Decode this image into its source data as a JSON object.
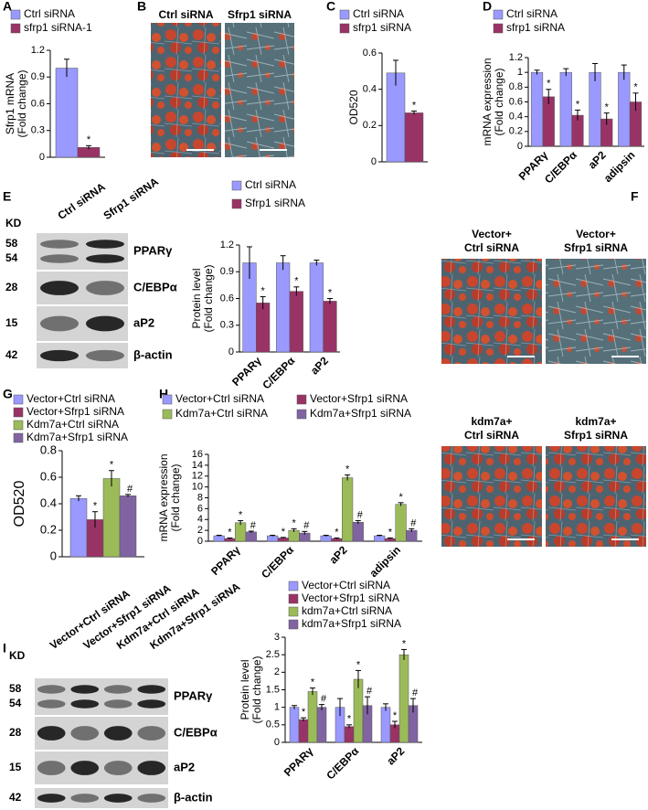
{
  "panels": [
    "A",
    "B",
    "C",
    "D",
    "E",
    "F",
    "G",
    "H",
    "I"
  ],
  "images": {
    "B": [
      [
        "Ctrl siRNA"
      ],
      [
        "Sfrp1 siRNA"
      ]
    ],
    "F": [
      [
        "Vector+",
        "Ctrl siRNA"
      ],
      [
        "Vector+",
        "Sfrp1 siRNA"
      ],
      [
        "kdm7a+",
        "Ctrl siRNA"
      ],
      [
        "kdm7a+",
        "Sfrp1 siRNA"
      ]
    ]
  },
  "blots": {
    "E": {
      "kd_title": "KD",
      "lanes": [
        "Ctrl siRNA",
        "Sfrp1 siRNA"
      ],
      "rows": [
        {
          "kd": [
            "58",
            "54"
          ],
          "name": "PPARγ"
        },
        {
          "kd": [
            "28"
          ],
          "name": "C/EBPα"
        },
        {
          "kd": [
            "15"
          ],
          "name": "aP2"
        },
        {
          "kd": [
            "42"
          ],
          "name": "β-actin"
        }
      ]
    },
    "I": {
      "kd_title": "KD",
      "lanes": [
        "Vector+Ctrl siRNA",
        "Vector+Sfrp1 siRNA",
        "Kdm7a+Ctrl siRNA",
        "Kdm7a+Sfrp1 siRNA"
      ],
      "rows": [
        {
          "kd": [
            "58",
            "54"
          ],
          "name": "PPARγ"
        },
        {
          "kd": [
            "28"
          ],
          "name": "C/EBPα"
        },
        {
          "kd": [
            "15"
          ],
          "name": "aP2"
        },
        {
          "kd": [
            "42"
          ],
          "name": "β-actin"
        }
      ]
    }
  },
  "chart_data": [
    {
      "type": "bar",
      "ylabel": [
        "Sfrp1 mRNA",
        "(Fold change)"
      ],
      "categories": [
        null
      ],
      "ylim": [
        0,
        1.2
      ],
      "yticks": [
        0,
        0.3,
        0.6,
        0.9,
        1.2
      ],
      "series": [
        {
          "name": "Ctrl siRNA",
          "color": "#9999ff",
          "values": [
            1.0
          ],
          "errors": [
            0.1
          ],
          "marks": [
            null
          ]
        },
        {
          "name": "sfrp1 siRNA-1",
          "color": "#993366",
          "values": [
            0.11
          ],
          "errors": [
            0.02
          ],
          "marks": [
            "*"
          ]
        }
      ]
    },
    {
      "type": "bar",
      "ylabel": [
        "OD520"
      ],
      "categories": [
        null
      ],
      "ylim": [
        0,
        0.6
      ],
      "yticks": [
        0,
        0.2,
        0.4,
        0.6
      ],
      "series": [
        {
          "name": "Ctrl siRNA",
          "color": "#9999ff",
          "values": [
            0.49
          ],
          "errors": [
            0.07
          ],
          "marks": [
            null
          ]
        },
        {
          "name": "sfrp1 siRNA",
          "color": "#993366",
          "values": [
            0.27
          ],
          "errors": [
            0.01
          ],
          "marks": [
            "*"
          ]
        }
      ]
    },
    {
      "type": "bar",
      "ylabel": [
        "mRNA expression",
        "(Fold change)"
      ],
      "categories": [
        "PPARγ",
        "C/EBPα",
        "aP2",
        "adipsin"
      ],
      "ylim": [
        0,
        1.2
      ],
      "yticks": [
        0,
        0.2,
        0.4,
        0.6,
        0.8,
        1,
        1.2
      ],
      "series": [
        {
          "name": "Ctrl siRNA",
          "color": "#9999ff",
          "values": [
            1,
            1,
            1,
            1
          ],
          "errors": [
            0.03,
            0.05,
            0.12,
            0.1
          ],
          "marks": [
            null,
            null,
            null,
            null
          ]
        },
        {
          "name": "sfrp1 siRNA",
          "color": "#993366",
          "values": [
            0.67,
            0.42,
            0.37,
            0.6
          ],
          "errors": [
            0.1,
            0.07,
            0.08,
            0.12
          ],
          "marks": [
            "*",
            "*",
            "*",
            "*"
          ]
        }
      ]
    },
    {
      "type": "bar",
      "ylabel": [
        "Protein level",
        "(Fold change)"
      ],
      "categories": [
        "PPARγ",
        "C/EBPα",
        "aP2"
      ],
      "ylim": [
        0,
        1.2
      ],
      "yticks": [
        0,
        0.3,
        0.6,
        0.9,
        1.2
      ],
      "series": [
        {
          "name": "Ctrl siRNA",
          "color": "#9999ff",
          "values": [
            1,
            1,
            1
          ],
          "errors": [
            0.18,
            0.08,
            0.03
          ],
          "marks": [
            null,
            null,
            null
          ]
        },
        {
          "name": "Sfrp1 siRNA",
          "color": "#993366",
          "values": [
            0.55,
            0.68,
            0.57
          ],
          "errors": [
            0.07,
            0.05,
            0.03
          ],
          "marks": [
            "*",
            "*",
            "*"
          ]
        }
      ]
    },
    {
      "type": "bar",
      "ylabel": [
        "OD520"
      ],
      "categories": [
        null
      ],
      "ylim": [
        0,
        0.8
      ],
      "yticks": [
        0,
        0.2,
        0.4,
        0.6,
        0.8
      ],
      "series": [
        {
          "name": "Vector+Ctrl siRNA",
          "color": "#9999ff",
          "values": [
            0.44
          ],
          "errors": [
            0.02
          ],
          "marks": [
            null
          ]
        },
        {
          "name": "Vector+Sfrp1 siRNA",
          "color": "#993366",
          "values": [
            0.28
          ],
          "errors": [
            0.06
          ],
          "marks": [
            "*"
          ]
        },
        {
          "name": "Kdm7a+Ctrl siRNA",
          "color": "#9bbb59",
          "values": [
            0.59
          ],
          "errors": [
            0.06
          ],
          "marks": [
            "*"
          ]
        },
        {
          "name": "Kdm7a+Sfrp1 siRNA",
          "color": "#8064a2",
          "values": [
            0.46
          ],
          "errors": [
            0.01
          ],
          "marks": [
            "#"
          ]
        }
      ]
    },
    {
      "type": "bar",
      "ylabel": [
        "mRNA expression",
        "(Fold change)"
      ],
      "categories": [
        "PPARγ",
        "C/EBPα",
        "aP2",
        "adipsin"
      ],
      "ylim": [
        0,
        16
      ],
      "yticks": [
        0,
        2,
        4,
        6,
        8,
        10,
        12,
        14,
        16
      ],
      "series": [
        {
          "name": "Vector+Ctrl siRNA",
          "color": "#9999ff",
          "values": [
            1,
            1,
            1,
            1
          ],
          "errors": [
            0.1,
            0.1,
            0.1,
            0.1
          ],
          "marks": [
            null,
            null,
            null,
            null
          ]
        },
        {
          "name": "Vector+Sfrp1 siRNA",
          "color": "#993366",
          "values": [
            0.5,
            0.6,
            0.5,
            0.5
          ],
          "errors": [
            0.1,
            0.1,
            0.1,
            0.1
          ],
          "marks": [
            "*",
            "*",
            "*",
            "*"
          ]
        },
        {
          "name": "Kdm7a+Ctrl siRNA",
          "color": "#9bbb59",
          "values": [
            3.4,
            2.0,
            11.7,
            6.8
          ],
          "errors": [
            0.4,
            0.3,
            0.5,
            0.3
          ],
          "marks": [
            "*",
            "*",
            "*",
            "*"
          ]
        },
        {
          "name": "Kdm7a+Sfrp1 siRNA",
          "color": "#8064a2",
          "values": [
            1.7,
            1.5,
            3.5,
            2.0
          ],
          "errors": [
            0.15,
            0.3,
            0.3,
            0.3
          ],
          "marks": [
            "#",
            "#",
            "#",
            "#"
          ]
        }
      ]
    },
    {
      "type": "bar",
      "ylabel": [
        "Protein level",
        "(Fold change)"
      ],
      "categories": [
        "PPARγ",
        "C/EBPα",
        "aP2"
      ],
      "ylim": [
        0,
        3
      ],
      "yticks": [
        0,
        0.5,
        1,
        1.5,
        2,
        2.5,
        3
      ],
      "series": [
        {
          "name": "Vector+Ctrl siRNA",
          "color": "#9999ff",
          "values": [
            1,
            1,
            1
          ],
          "errors": [
            0.05,
            0.25,
            0.1
          ],
          "marks": [
            null,
            null,
            null
          ]
        },
        {
          "name": "Vector+Sfrp1 siRNA",
          "color": "#993366",
          "values": [
            0.65,
            0.45,
            0.5
          ],
          "errors": [
            0.05,
            0.05,
            0.1
          ],
          "marks": [
            "*",
            "*",
            "*"
          ]
        },
        {
          "name": "kdm7a+Ctrl siRNA",
          "color": "#9bbb59",
          "values": [
            1.45,
            1.8,
            2.5
          ],
          "errors": [
            0.1,
            0.25,
            0.15
          ],
          "marks": [
            "*",
            "*",
            "*"
          ]
        },
        {
          "name": "kdm7a+Sfrp1 siRNA",
          "color": "#8064a2",
          "values": [
            1.0,
            1.05,
            1.05
          ],
          "errors": [
            0.08,
            0.25,
            0.2
          ],
          "marks": [
            "#",
            "#",
            "#"
          ]
        }
      ]
    }
  ]
}
